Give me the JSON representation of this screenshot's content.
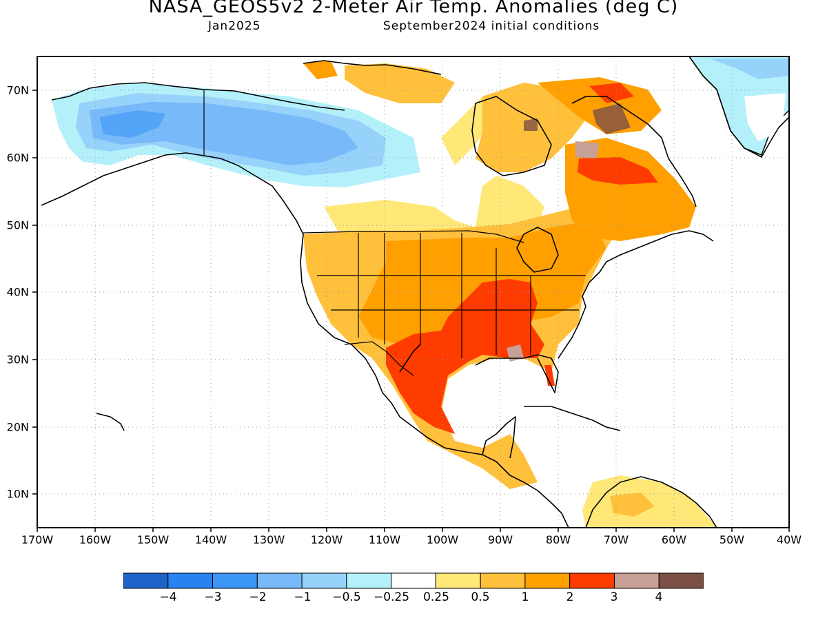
{
  "title": "NASA_GEOS5v2 2-Meter Air Temp. Anomalies (deg C)",
  "subtitle_left": "Jan2025",
  "subtitle_right": "September2024 initial conditions",
  "lon_ticks": [
    "170W",
    "160W",
    "150W",
    "140W",
    "130W",
    "120W",
    "110W",
    "100W",
    "90W",
    "80W",
    "70W",
    "60W",
    "50W",
    "40W"
  ],
  "lat_ticks": [
    "70N",
    "60N",
    "50N",
    "40N",
    "30N",
    "20N",
    "10N"
  ],
  "legend": {
    "labels": [
      "−4",
      "−3",
      "−2",
      "−1",
      "−0.5",
      "−0.25",
      "0.25",
      "0.5",
      "1",
      "2",
      "3",
      "4"
    ],
    "colors": [
      "#1e64c8",
      "#2882f0",
      "#3c96f5",
      "#78b9fa",
      "#96d2fa",
      "#b4f0fa",
      "#ffffff",
      "#ffe878",
      "#ffc03c",
      "#ffa000",
      "#ff3c00",
      "#c8a096",
      "#7d5046"
    ]
  },
  "colors": {
    "land_neutral": "#ffffff",
    "ocean": "#ffffff",
    "coast": "#000000"
  }
}
